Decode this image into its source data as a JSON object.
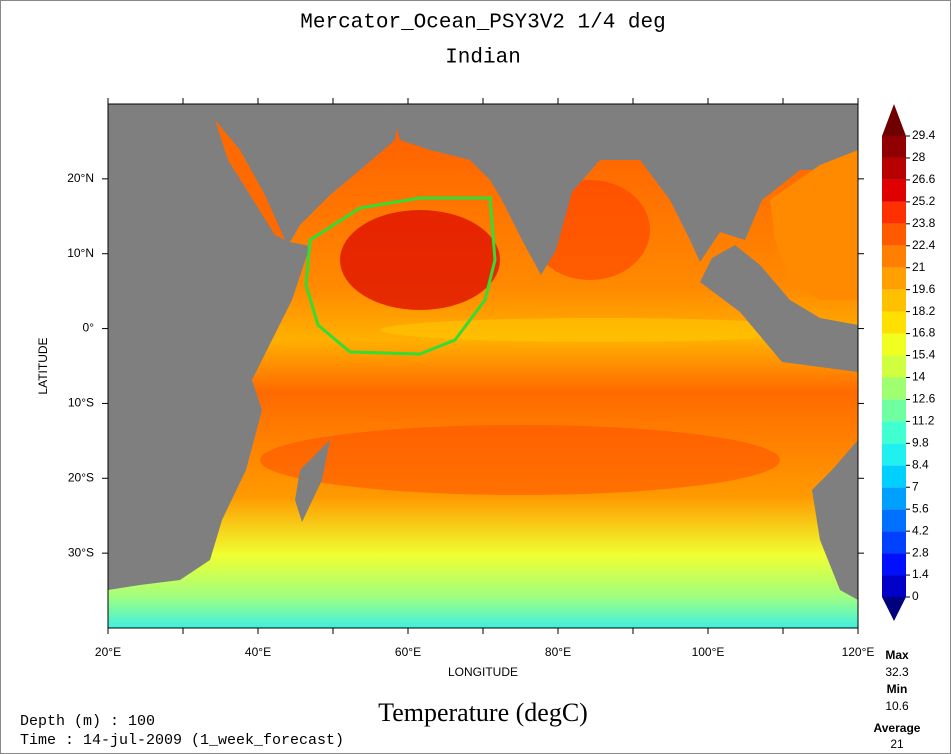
{
  "title": "Mercator_Ocean_PSY3V2 1/4 deg",
  "subtitle": "Indian",
  "x_axis": {
    "label": "LONGITUDE",
    "lim": [
      20,
      120
    ],
    "ticks": [
      {
        "value": 20,
        "label": "20°E"
      },
      {
        "value": 40,
        "label": "40°E"
      },
      {
        "value": 60,
        "label": "60°E"
      },
      {
        "value": 80,
        "label": "80°E"
      },
      {
        "value": 100,
        "label": "100°E"
      },
      {
        "value": 120,
        "label": "120°E"
      }
    ],
    "minor_ticks": [
      30,
      50,
      70,
      90,
      110
    ]
  },
  "y_axis": {
    "label": "LATITUDE",
    "lim": [
      -40,
      30
    ],
    "ticks": [
      {
        "value": 20,
        "label": "20°N"
      },
      {
        "value": 10,
        "label": "10°N"
      },
      {
        "value": 0,
        "label": "0°"
      },
      {
        "value": -10,
        "label": "10°S"
      },
      {
        "value": -20,
        "label": "20°S"
      },
      {
        "value": -30,
        "label": "30°S"
      }
    ]
  },
  "colorbar": {
    "lim": [
      0,
      29.4
    ],
    "ticks": [
      29.4,
      28,
      26.6,
      25.2,
      23.8,
      22.4,
      21,
      19.6,
      18.2,
      16.8,
      15.4,
      14,
      12.6,
      11.2,
      9.8,
      8.4,
      7,
      5.6,
      4.2,
      2.8,
      1.4,
      0
    ],
    "colors": [
      "#00007f",
      "#0000c8",
      "#0010ff",
      "#0040ff",
      "#0070ff",
      "#00a0ff",
      "#00d0ff",
      "#20f0f0",
      "#40ffd0",
      "#70ffa0",
      "#a0ff70",
      "#d0ff40",
      "#f0ff20",
      "#ffe000",
      "#ffc000",
      "#ffa000",
      "#ff8000",
      "#ff5a00",
      "#ff3000",
      "#e00000",
      "#b80000",
      "#900000",
      "#700000"
    ]
  },
  "variable": "Temperature (degC)",
  "stats": {
    "max_label": "Max",
    "max": 32.3,
    "min_label": "Min",
    "min": 10.6,
    "average_label": "Average",
    "average": 21
  },
  "footer": {
    "depth": "Depth (m) : 100",
    "time": "Time : 14-jul-2009 (1_week_forecast)"
  }
}
